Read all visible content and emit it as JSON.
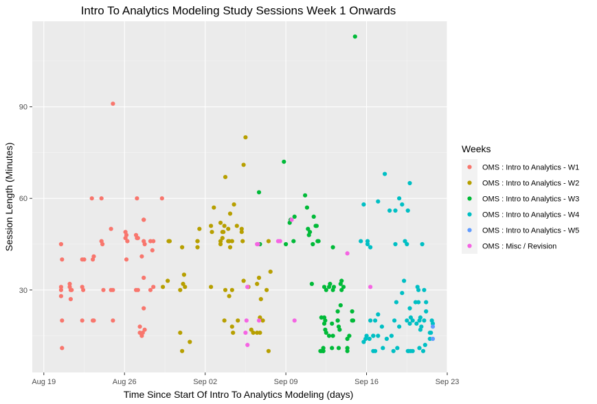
{
  "chart_data": {
    "type": "scatter",
    "title": "Intro To Analytics Modeling Study Sessions Week 1 Onwards",
    "xlabel": "Time Since Start Of Intro To Analytics Modeling (days)",
    "ylabel": "Session Length (Minutes)",
    "x_type": "date",
    "xlim": [
      "2019-08-18",
      "2019-09-23"
    ],
    "ylim": [
      3,
      118
    ],
    "x_ticks": [
      {
        "date": "2019-08-19",
        "label": "Aug 19"
      },
      {
        "date": "2019-08-26",
        "label": "Aug 26"
      },
      {
        "date": "2019-09-02",
        "label": "Sep 02"
      },
      {
        "date": "2019-09-09",
        "label": "Sep 09"
      },
      {
        "date": "2019-09-16",
        "label": "Sep 16"
      },
      {
        "date": "2019-09-23",
        "label": "Sep 23"
      }
    ],
    "y_ticks": [
      30,
      60,
      90
    ],
    "grid": true,
    "legend": {
      "title": "Weeks",
      "position": "right"
    },
    "series": [
      {
        "name": "OMS : Intro to Analytics - W1",
        "color": "#F8766D",
        "x": [
          "2019-08-20 12:00",
          "2019-08-20 12:00",
          "2019-08-20 12:00",
          "2019-08-20 12:00",
          "2019-08-20 14:00",
          "2019-08-20 14:00",
          "2019-08-20 14:00",
          "2019-08-21 06:00",
          "2019-08-21 06:00",
          "2019-08-21 08:00",
          "2019-08-21 08:00",
          "2019-08-21 10:00",
          "2019-08-22 08:00",
          "2019-08-22 08:00",
          "2019-08-22 08:00",
          "2019-08-22 10:00",
          "2019-08-22 12:00",
          "2019-08-23 04:00",
          "2019-08-23 06:00",
          "2019-08-23 06:00",
          "2019-08-23 08:00",
          "2019-08-23 08:00",
          "2019-08-24 00:00",
          "2019-08-24 00:00",
          "2019-08-24 02:00",
          "2019-08-24 04:00",
          "2019-08-24 20:00",
          "2019-08-24 20:00",
          "2019-08-25 00:00",
          "2019-08-25 00:00",
          "2019-08-25 00:00",
          "2019-08-26 02:00",
          "2019-08-26 02:00",
          "2019-08-26 04:00",
          "2019-08-26 04:00",
          "2019-08-26 06:00",
          "2019-08-27 00:00",
          "2019-08-27 00:00",
          "2019-08-27 02:00",
          "2019-08-27 02:00",
          "2019-08-27 04:00",
          "2019-08-27 04:00",
          "2019-08-27 08:00",
          "2019-08-27 08:00",
          "2019-08-27 12:00",
          "2019-08-27 12:00",
          "2019-08-27 14:00",
          "2019-08-27 16:00",
          "2019-08-27 16:00",
          "2019-08-27 16:00",
          "2019-08-27 16:00",
          "2019-08-27 16:00",
          "2019-08-27 18:00",
          "2019-08-27 18:00",
          "2019-08-28 06:00",
          "2019-08-28 06:00",
          "2019-08-28 10:00",
          "2019-08-28 12:00",
          "2019-08-28 12:00",
          "2019-08-29 06:00"
        ],
        "y": [
          45,
          31,
          30,
          28,
          11,
          20,
          40,
          32,
          31,
          30,
          27,
          30,
          40,
          31,
          20,
          30,
          40,
          60,
          20,
          40,
          41,
          20,
          46,
          60,
          45,
          30,
          50,
          30,
          30,
          20,
          91,
          49,
          47,
          40,
          48,
          46,
          48,
          30,
          47,
          60,
          30,
          47,
          18,
          16,
          15,
          41,
          16,
          53,
          53,
          34,
          46,
          24,
          17,
          45,
          46,
          30,
          43,
          46,
          31,
          60
        ]
      },
      {
        "name": "OMS : Intro to Analytics - W2",
        "color": "#B79F00",
        "x": [
          "2019-08-29 08:00",
          "2019-08-29 18:00",
          "2019-08-29 20:00",
          "2019-08-29 22:00",
          "2019-08-30 20:00",
          "2019-08-30 20:00",
          "2019-08-31 00:00",
          "2019-08-31 00:00",
          "2019-08-31 02:00",
          "2019-08-31 04:00",
          "2019-08-31 06:00",
          "2019-08-31 16:00",
          "2019-09-01 08:00",
          "2019-09-01 08:00",
          "2019-09-01 08:00",
          "2019-09-01 12:00",
          "2019-09-02 12:00",
          "2019-09-02 12:00",
          "2019-09-02 14:00",
          "2019-09-02 18:00",
          "2019-09-03 08:00",
          "2019-09-03 08:00",
          "2019-09-03 08:00",
          "2019-09-03 12:00",
          "2019-09-03 12:00",
          "2019-09-03 14:00",
          "2019-09-03 16:00",
          "2019-09-03 16:00",
          "2019-09-03 18:00",
          "2019-09-03 18:00",
          "2019-09-04 00:00",
          "2019-09-04 00:00",
          "2019-09-04 02:00",
          "2019-09-04 02:00",
          "2019-09-04 04:00",
          "2019-09-04 04:00",
          "2019-09-04 08:00",
          "2019-09-04 08:00",
          "2019-09-04 08:00",
          "2019-09-04 10:00",
          "2019-09-04 12:00",
          "2019-09-04 18:00",
          "2019-09-04 20:00",
          "2019-09-05 04:00",
          "2019-09-05 04:00",
          "2019-09-05 06:00",
          "2019-09-05 08:00",
          "2019-09-05 08:00",
          "2019-09-05 12:00",
          "2019-09-05 18:00",
          "2019-09-06 00:00",
          "2019-09-06 04:00",
          "2019-09-06 12:00",
          "2019-09-06 12:00",
          "2019-09-06 16:00",
          "2019-09-06 18:00",
          "2019-09-06 18:00",
          "2019-09-06 20:00",
          "2019-09-07 00:00",
          "2019-09-07 08:00",
          "2019-09-07 12:00",
          "2019-09-07 12:00",
          "2019-09-07 16:00"
        ],
        "y": [
          31,
          33,
          46,
          46,
          30,
          16,
          44,
          10,
          32,
          35,
          31,
          13,
          44,
          46,
          46,
          50,
          51,
          31,
          49,
          57,
          52,
          46,
          45,
          47,
          49,
          49,
          51,
          20,
          30,
          67,
          50,
          46,
          46,
          28,
          44,
          55,
          46,
          18,
          30,
          16,
          58,
          51,
          20,
          50,
          49,
          46,
          71,
          33,
          80,
          31,
          17,
          16,
          16,
          32,
          34,
          16,
          21,
          27,
          20,
          30,
          10,
          46,
          36
        ]
      },
      {
        "name": "OMS : Intro to Analytics - W3",
        "color": "#00BA38",
        "x": [
          "2019-09-06 16:00",
          "2019-09-06 18:00",
          "2019-09-08 20:00",
          "2019-09-09 00:00",
          "2019-09-09 08:00",
          "2019-09-09 10:00",
          "2019-09-09 16:00",
          "2019-09-09 18:00",
          "2019-09-10 16:00",
          "2019-09-10 20:00",
          "2019-09-10 22:00",
          "2019-09-11 00:00",
          "2019-09-11 02:00",
          "2019-09-11 06:00",
          "2019-09-11 08:00",
          "2019-09-11 10:00",
          "2019-09-11 14:00",
          "2019-09-11 16:00",
          "2019-09-11 18:00",
          "2019-09-11 20:00",
          "2019-09-12 00:00",
          "2019-09-12 02:00",
          "2019-09-12 02:00",
          "2019-09-12 06:00",
          "2019-09-12 06:00",
          "2019-09-12 06:00",
          "2019-09-12 06:00",
          "2019-09-12 08:00",
          "2019-09-12 08:00",
          "2019-09-12 08:00",
          "2019-09-12 10:00",
          "2019-09-12 10:00",
          "2019-09-12 12:00",
          "2019-09-12 12:00",
          "2019-09-12 18:00",
          "2019-09-12 18:00",
          "2019-09-12 20:00",
          "2019-09-13 00:00",
          "2019-09-13 00:00",
          "2019-09-13 02:00",
          "2019-09-13 02:00",
          "2019-09-13 02:00",
          "2019-09-13 04:00",
          "2019-09-13 12:00",
          "2019-09-13 12:00",
          "2019-09-13 12:00",
          "2019-09-13 14:00",
          "2019-09-13 14:00",
          "2019-09-13 16:00",
          "2019-09-13 18:00",
          "2019-09-13 18:00",
          "2019-09-13 20:00",
          "2019-09-13 20:00",
          "2019-09-14 00:00",
          "2019-09-14 08:00",
          "2019-09-14 08:00",
          "2019-09-14 08:00",
          "2019-09-14 12:00",
          "2019-09-14 18:00",
          "2019-09-14 18:00",
          "2019-09-14 20:00",
          "2019-09-15 00:00"
        ],
        "y": [
          62,
          45,
          72,
          45,
          52,
          53,
          46,
          54,
          61,
          57,
          50,
          48,
          49,
          32,
          45,
          54,
          51,
          51,
          46,
          46,
          10,
          21,
          10,
          10,
          10,
          10,
          11,
          31,
          19,
          21,
          20,
          17,
          16,
          30,
          15,
          31,
          32,
          19,
          11,
          15,
          30,
          44,
          31,
          23,
          20,
          20,
          11,
          18,
          17,
          25,
          32,
          33,
          30,
          31,
          10,
          11,
          14,
          15,
          23,
          20,
          20,
          113
        ]
      },
      {
        "name": "OMS : Intro to Analytics - W4",
        "color": "#00BFC4",
        "x": [
          "2019-09-15 12:00",
          "2019-09-15 18:00",
          "2019-09-15 18:00",
          "2019-09-15 22:00",
          "2019-09-16 00:00",
          "2019-09-16 02:00",
          "2019-09-16 02:00",
          "2019-09-16 06:00",
          "2019-09-16 08:00",
          "2019-09-16 08:00",
          "2019-09-16 14:00",
          "2019-09-16 14:00",
          "2019-09-16 14:00",
          "2019-09-16 18:00",
          "2019-09-16 18:00",
          "2019-09-17 00:00",
          "2019-09-17 00:00",
          "2019-09-17 00:00",
          "2019-09-17 08:00",
          "2019-09-17 10:00",
          "2019-09-17 14:00",
          "2019-09-17 18:00",
          "2019-09-18 00:00",
          "2019-09-18 04:00",
          "2019-09-18 08:00",
          "2019-09-18 10:00",
          "2019-09-18 12:00",
          "2019-09-18 12:00",
          "2019-09-18 14:00",
          "2019-09-18 16:00",
          "2019-09-18 20:00",
          "2019-09-18 20:00",
          "2019-09-19 02:00",
          "2019-09-19 02:00",
          "2019-09-19 06:00",
          "2019-09-19 08:00",
          "2019-09-19 12:00",
          "2019-09-19 12:00",
          "2019-09-19 14:00",
          "2019-09-19 14:00",
          "2019-09-19 16:00",
          "2019-09-19 18:00",
          "2019-09-19 18:00",
          "2019-09-19 18:00",
          "2019-09-19 20:00",
          "2019-09-19 20:00",
          "2019-09-20 00:00",
          "2019-09-20 00:00",
          "2019-09-20 06:00",
          "2019-09-20 08:00",
          "2019-09-20 10:00",
          "2019-09-20 12:00",
          "2019-09-20 12:00",
          "2019-09-20 14:00",
          "2019-09-20 14:00",
          "2019-09-20 16:00",
          "2019-09-20 16:00",
          "2019-09-20 18:00",
          "2019-09-20 20:00",
          "2019-09-20 22:00",
          "2019-09-21 00:00",
          "2019-09-21 00:00",
          "2019-09-21 02:00",
          "2019-09-21 04:00",
          "2019-09-21 04:00",
          "2019-09-21 12:00",
          "2019-09-21 12:00",
          "2019-09-21 14:00",
          "2019-09-21 16:00",
          "2019-09-21 18:00"
        ],
        "y": [
          46,
          58,
          13,
          14,
          15,
          45,
          46,
          14,
          20,
          44,
          10,
          15,
          15,
          20,
          10,
          22,
          15,
          59,
          18,
          11,
          68,
          14,
          56,
          15,
          10,
          20,
          45,
          56,
          26,
          11,
          18,
          60,
          29,
          58,
          33,
          46,
          20,
          45,
          10,
          56,
          10,
          24,
          65,
          19,
          10,
          21,
          10,
          20,
          26,
          19,
          31,
          30,
          26,
          20,
          11,
          17,
          21,
          18,
          45,
          10,
          20,
          30,
          12,
          26,
          23,
          14,
          16,
          16,
          20,
          19
        ]
      },
      {
        "name": "OMS : Intro to Analytics - W5",
        "color": "#619CFF",
        "x": [
          "2019-09-21 18:00",
          "2019-09-21 18:00"
        ],
        "y": [
          18,
          14
        ]
      },
      {
        "name": "OMS : Misc / Revision",
        "color": "#F564E3",
        "x": [
          "2019-09-05 12:00",
          "2019-09-05 14:00",
          "2019-09-05 16:00",
          "2019-09-05 16:00",
          "2019-09-05 16:00",
          "2019-09-06 12:00",
          "2019-09-06 14:00",
          "2019-09-06 16:00",
          "2019-09-08 08:00",
          "2019-09-08 12:00",
          "2019-09-09 12:00",
          "2019-09-09 18:00",
          "2019-09-14 08:00",
          "2019-09-16 08:00"
        ],
        "y": [
          16,
          20,
          31,
          31,
          12,
          45,
          45,
          20,
          46,
          46,
          53,
          20,
          42,
          31
        ]
      }
    ]
  }
}
